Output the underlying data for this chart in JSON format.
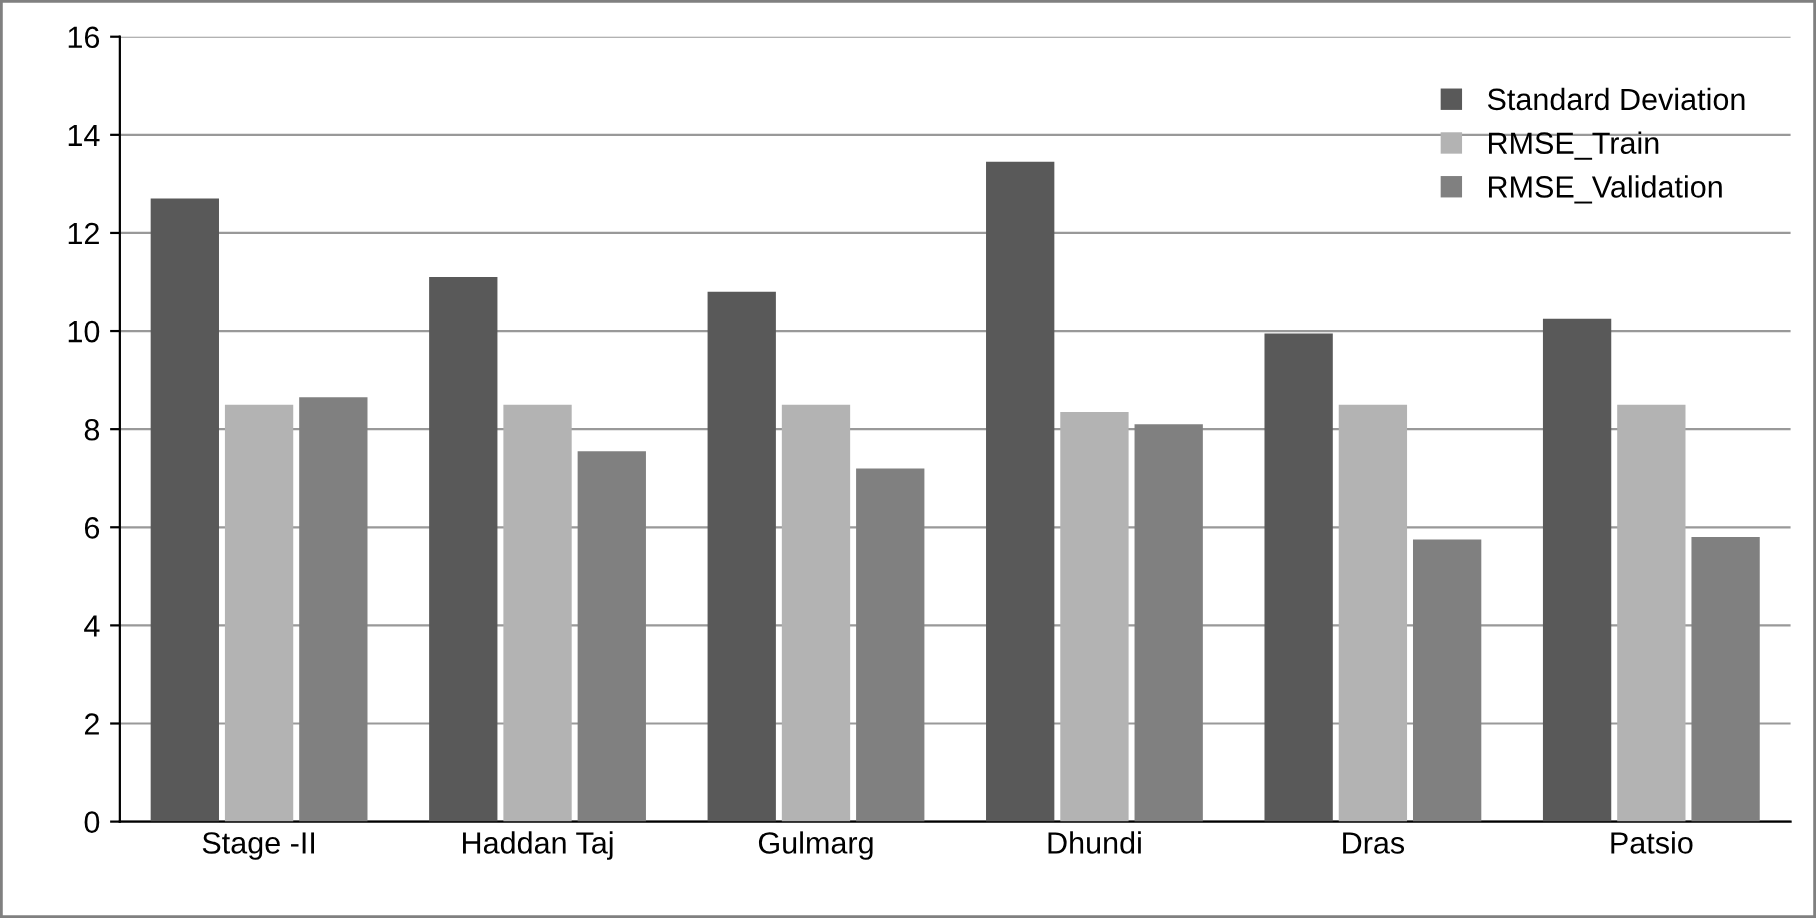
{
  "chart_data": {
    "type": "bar",
    "categories": [
      "Stage -II",
      "Haddan Taj",
      "Gulmarg",
      "Dhundi",
      "Dras",
      "Patsio"
    ],
    "series": [
      {
        "name": "Standard Deviation",
        "color": "#595959",
        "values": [
          12.7,
          11.1,
          10.8,
          13.45,
          9.95,
          10.25
        ]
      },
      {
        "name": "RMSE_Train",
        "color": "#b3b3b3",
        "values": [
          8.5,
          8.5,
          8.5,
          8.35,
          8.5,
          8.5
        ]
      },
      {
        "name": "RMSE_Validation",
        "color": "#808080",
        "values": [
          8.65,
          7.55,
          7.2,
          8.1,
          5.75,
          5.8
        ]
      }
    ],
    "ylim": [
      0,
      16
    ],
    "yticks": [
      0,
      2,
      4,
      6,
      8,
      10,
      12,
      14,
      16
    ],
    "grid": "y",
    "legend": "top right"
  }
}
